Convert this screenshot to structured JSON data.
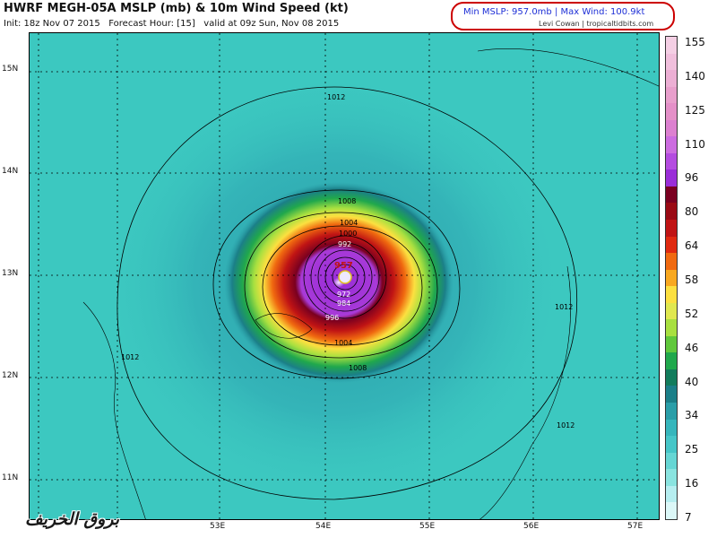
{
  "header": {
    "title": "HWRF MEGH-05A MSLP (mb) & 10m Wind Speed (kt)",
    "meta": "Init: 18z Nov 07 2015   Forecast Hour: [15]   valid at 09z Sun, Nov 08 2015"
  },
  "info_box": {
    "stats": "Min MSLP: 957.0mb  |  Max Wind: 100.9kt",
    "credit": "Levi Cowan | tropicaltidbits.com"
  },
  "map": {
    "lat_labels": [
      "15N",
      "14N",
      "13N",
      "12N",
      "11N"
    ],
    "lon_labels": [
      "53E",
      "54E",
      "55E",
      "56E",
      "57E"
    ],
    "isobars": [
      {
        "label": "1012"
      },
      {
        "label": "1008"
      },
      {
        "label": "1004"
      },
      {
        "label": "1000"
      },
      {
        "label": "992"
      },
      {
        "label": "972"
      },
      {
        "label": "984"
      },
      {
        "label": "996"
      }
    ],
    "min_pressure_label": "957",
    "colors": {
      "background": "#3cc8c0",
      "eye": "#9a2ed8"
    }
  },
  "colorbar": {
    "labels": [
      "155",
      "140",
      "125",
      "110",
      "96",
      "80",
      "64",
      "58",
      "52",
      "46",
      "40",
      "34",
      "25",
      "16",
      "7"
    ],
    "colors": [
      "#f4cfe4",
      "#f0bfdc",
      "#ecafd4",
      "#e89fcc",
      "#e490c8",
      "#dc80d0",
      "#cc6ce0",
      "#b44ce0",
      "#9a2ed8",
      "#7a0020",
      "#9a0a14",
      "#c01414",
      "#e02a10",
      "#f06a10",
      "#f8a820",
      "#fce040",
      "#e0e850",
      "#a8e040",
      "#60c83c",
      "#20a84c",
      "#127c5c",
      "#1b7f88",
      "#2a9ea8",
      "#36b6bc",
      "#46c6c8",
      "#66d6d4",
      "#8ae4e0",
      "#b6eef0",
      "#dcf8f8"
    ]
  },
  "watermark": "بروق الخريف"
}
